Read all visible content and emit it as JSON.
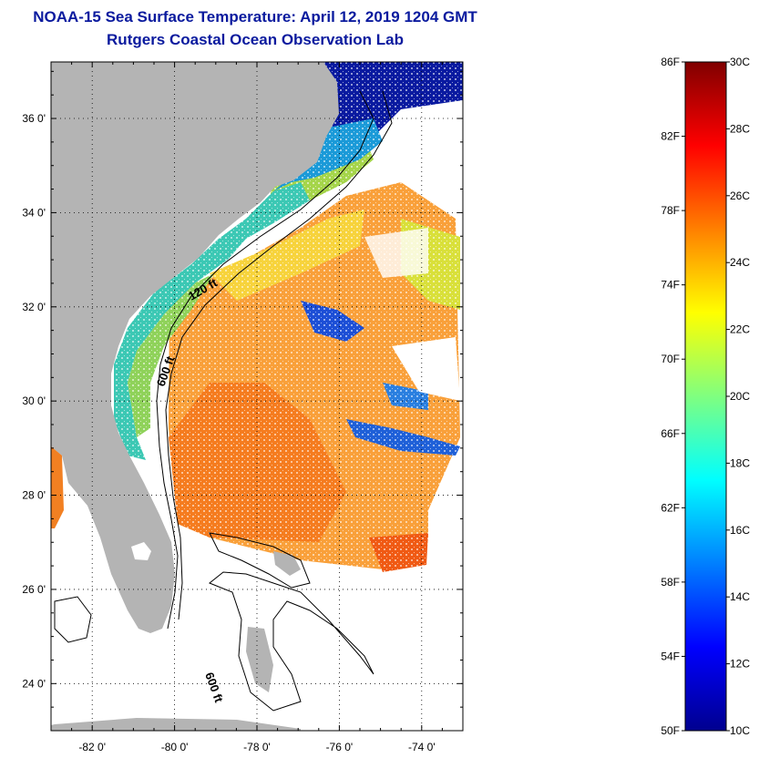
{
  "header": {
    "title": "NOAA-15 Sea Surface Temperature:  April 12, 2019 1204 GMT",
    "subtitle": "Rutgers Coastal Ocean Observation Lab"
  },
  "map": {
    "lat_ticks": [
      "36 0'",
      "34 0'",
      "32 0'",
      "30 0'",
      "28 0'",
      "26 0'",
      "24 0'"
    ],
    "lon_ticks": [
      "-82 0'",
      "-80 0'",
      "-78 0'",
      "-76 0'",
      "-74 0'"
    ],
    "lat_range": [
      23,
      37.2
    ],
    "lon_range": [
      -83,
      -73
    ],
    "contour_labels": [
      "120 ft",
      "600 ft",
      "600 ft"
    ],
    "colors": {
      "land": "#b4b4b4",
      "no_data": "#ffffff"
    }
  },
  "colorbar": {
    "fahrenheit": [
      "86F",
      "82F",
      "78F",
      "74F",
      "70F",
      "66F",
      "62F",
      "58F",
      "54F",
      "50F"
    ],
    "celsius": [
      "30C",
      "28C",
      "26C",
      "24C",
      "22C",
      "20C",
      "18C",
      "16C",
      "14C",
      "12C",
      "10C"
    ],
    "range_c": [
      10,
      30
    ],
    "colormap": "jet"
  }
}
